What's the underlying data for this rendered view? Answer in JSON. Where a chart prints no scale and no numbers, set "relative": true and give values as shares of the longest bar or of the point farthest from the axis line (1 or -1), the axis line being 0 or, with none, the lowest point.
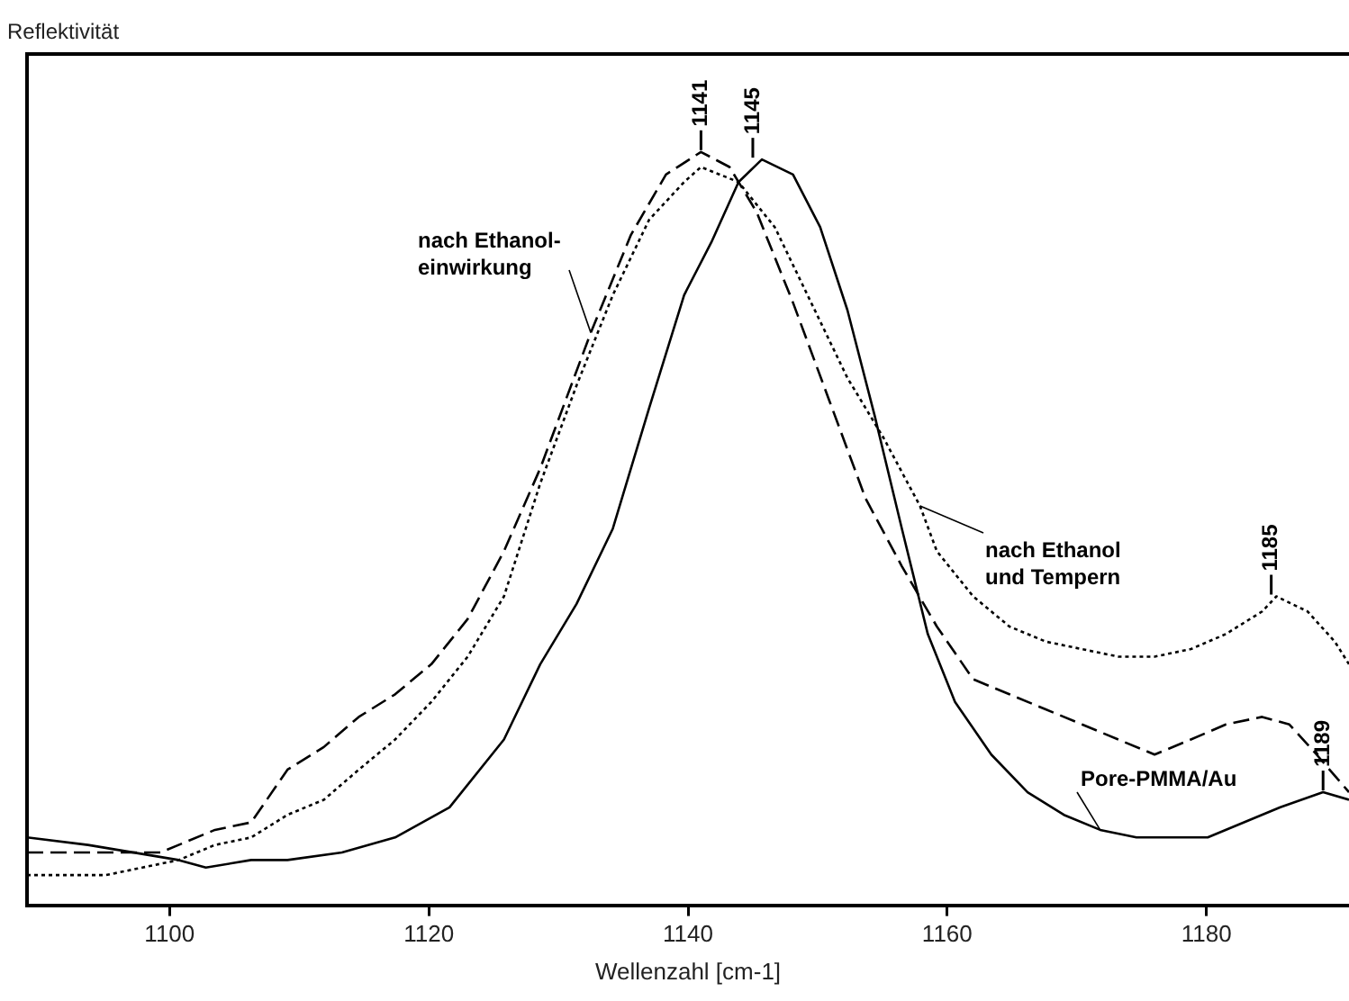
{
  "chart_data": {
    "type": "line",
    "relative": true,
    "xlabel": "Wellenzahl [cm-1]",
    "xlim": [
      1089,
      1191
    ],
    "xticks": [
      1100,
      1120,
      1140,
      1160,
      1180
    ],
    "grid": false,
    "legend": false,
    "marker": "none",
    "series": [
      {
        "name": "Pore-PMMA/Au",
        "color": "#000000",
        "line_style": "solid",
        "x": [
          1089,
          1093.7,
          1100.7,
          1102.8,
          1106.3,
          1109.1,
          1113.3,
          1117.4,
          1121.6,
          1125.8,
          1128.6,
          1131.4,
          1134.2,
          1137,
          1139.7,
          1141.8,
          1143.9,
          1145.7,
          1148.1,
          1150.2,
          1152.3,
          1154.4,
          1156.5,
          1158.5,
          1160.6,
          1163.4,
          1166.2,
          1169,
          1171.8,
          1174.6,
          1177.4,
          1180.1,
          1182.9,
          1185.7,
          1189,
          1191
        ],
        "values": [
          0.09,
          0.08,
          0.06,
          0.05,
          0.06,
          0.06,
          0.07,
          0.09,
          0.13,
          0.22,
          0.32,
          0.4,
          0.5,
          0.66,
          0.81,
          0.88,
          0.96,
          0.99,
          0.97,
          0.9,
          0.79,
          0.65,
          0.5,
          0.36,
          0.27,
          0.2,
          0.15,
          0.12,
          0.1,
          0.09,
          0.09,
          0.09,
          0.11,
          0.13,
          0.15,
          0.14
        ]
      },
      {
        "name": "nach Ethanol-\neinwirkung",
        "color": "#000000",
        "line_style": "dashed",
        "x": [
          1089,
          1099.3,
          1100.7,
          1103.5,
          1106.3,
          1109.1,
          1111.9,
          1114.6,
          1117.4,
          1120.2,
          1123,
          1125.8,
          1128.6,
          1132.5,
          1135.6,
          1138.3,
          1141,
          1143.2,
          1145.3,
          1148.1,
          1150.9,
          1153.7,
          1156.5,
          1159.2,
          1162,
          1164.8,
          1167.6,
          1170.4,
          1173.2,
          1176,
          1178.8,
          1181.5,
          1184.3,
          1186.4,
          1188.5,
          1191
        ],
        "values": [
          0.07,
          0.07,
          0.08,
          0.1,
          0.11,
          0.18,
          0.21,
          0.25,
          0.28,
          0.32,
          0.38,
          0.47,
          0.58,
          0.76,
          0.89,
          0.97,
          1,
          0.98,
          0.92,
          0.8,
          0.67,
          0.54,
          0.45,
          0.37,
          0.3,
          0.28,
          0.26,
          0.24,
          0.22,
          0.2,
          0.22,
          0.24,
          0.25,
          0.24,
          0.2,
          0.15
        ]
      },
      {
        "name": "nach Ethanol\nund Tempern",
        "color": "#000000",
        "line_style": "dotted",
        "x": [
          1089,
          1095.1,
          1097.9,
          1100.7,
          1103.5,
          1106.3,
          1109.1,
          1111.9,
          1114.6,
          1117.4,
          1120.2,
          1123,
          1125.8,
          1128.6,
          1131.4,
          1134.2,
          1137,
          1139.7,
          1141,
          1143.9,
          1146.7,
          1149.5,
          1152.3,
          1155.1,
          1157.9,
          1159.2,
          1162,
          1164.8,
          1167.6,
          1170.4,
          1173.2,
          1176,
          1178.8,
          1181.5,
          1184.3,
          1185.4,
          1187.8,
          1189.9,
          1191
        ],
        "values": [
          0.04,
          0.04,
          0.05,
          0.06,
          0.08,
          0.09,
          0.12,
          0.14,
          0.18,
          0.22,
          0.27,
          0.33,
          0.41,
          0.56,
          0.69,
          0.81,
          0.91,
          0.96,
          0.98,
          0.96,
          0.9,
          0.8,
          0.7,
          0.62,
          0.53,
          0.47,
          0.41,
          0.37,
          0.35,
          0.34,
          0.33,
          0.33,
          0.34,
          0.36,
          0.39,
          0.41,
          0.39,
          0.35,
          0.32
        ]
      }
    ],
    "annotations": [
      "Reflektivität",
      {
        "text": "1141",
        "x": 1141,
        "y": 1
      },
      {
        "text": "1145",
        "x": 1145,
        "y": 0.99
      },
      {
        "text": "1185",
        "x": 1185,
        "y": 0.41
      },
      {
        "text": "1189",
        "x": 1189,
        "y": 0.15
      }
    ]
  }
}
